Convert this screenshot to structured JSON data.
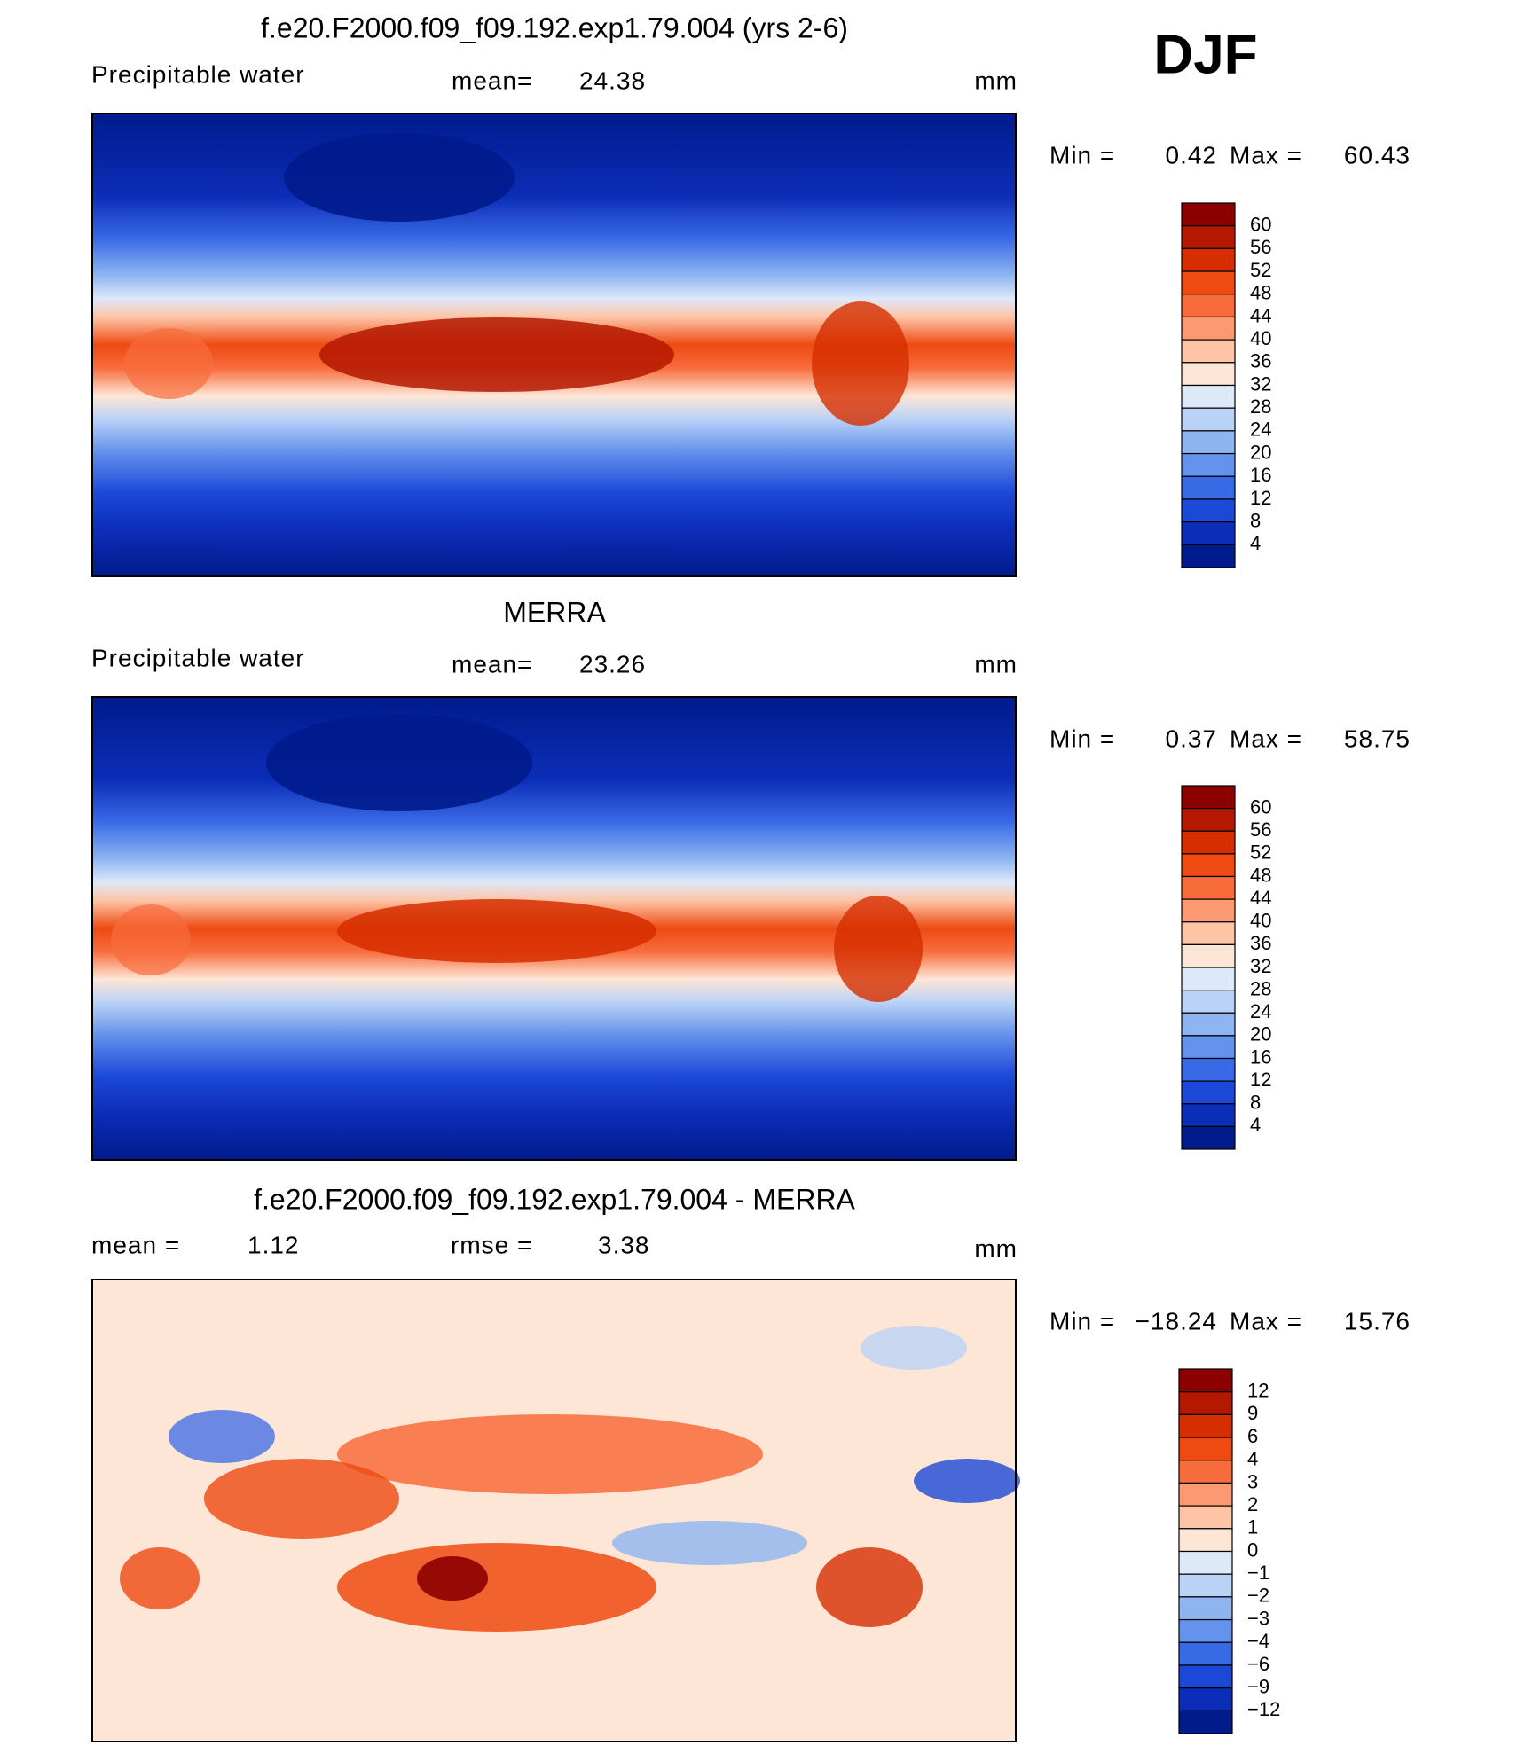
{
  "header": {
    "season": "DJF"
  },
  "panels": [
    {
      "title": "f.e20.F2000.f09_f09.192.exp1.79.004 (yrs 2-6)",
      "variable": "Precipitable water",
      "stat1_label": "mean=",
      "stat1_value": "24.38",
      "units": "mm",
      "min_label": "Min =",
      "min": "0.42",
      "max_label": "Max =",
      "max": "60.43",
      "colorbar": {
        "labels": [
          "60",
          "56",
          "52",
          "48",
          "44",
          "40",
          "36",
          "32",
          "28",
          "24",
          "20",
          "16",
          "12",
          "8",
          "4"
        ],
        "colors": [
          "#8c0000",
          "#b41800",
          "#d62e00",
          "#ee4a12",
          "#f86c3c",
          "#fb9a72",
          "#fdc4a6",
          "#fee6d6",
          "#dde9f9",
          "#bad2f6",
          "#8fb5f1",
          "#6492ec",
          "#396ae6",
          "#1c48d8",
          "#0c2db8",
          "#001b8c"
        ]
      }
    },
    {
      "title": "MERRA",
      "variable": "Precipitable water",
      "stat1_label": "mean=",
      "stat1_value": "23.26",
      "units": "mm",
      "min_label": "Min =",
      "min": "0.37",
      "max_label": "Max =",
      "max": "58.75",
      "colorbar": {
        "labels": [
          "60",
          "56",
          "52",
          "48",
          "44",
          "40",
          "36",
          "32",
          "28",
          "24",
          "20",
          "16",
          "12",
          "8",
          "4"
        ],
        "colors": [
          "#8c0000",
          "#b41800",
          "#d62e00",
          "#ee4a12",
          "#f86c3c",
          "#fb9a72",
          "#fdc4a6",
          "#fee6d6",
          "#dde9f9",
          "#bad2f6",
          "#8fb5f1",
          "#6492ec",
          "#396ae6",
          "#1c48d8",
          "#0c2db8",
          "#001b8c"
        ]
      }
    },
    {
      "title": "f.e20.F2000.f09_f09.192.exp1.79.004 - MERRA",
      "stat1_label": "mean =",
      "stat1_value": "1.12",
      "stat2_label": "rmse =",
      "stat2_value": "3.38",
      "units": "mm",
      "min_label": "Min =",
      "min": "−18.24",
      "max_label": "Max =",
      "max": "15.76",
      "colorbar": {
        "labels": [
          "12",
          "9",
          "6",
          "4",
          "3",
          "2",
          "1",
          "0",
          "−1",
          "−2",
          "−3",
          "−4",
          "−6",
          "−9",
          "−12"
        ],
        "colors": [
          "#8c0000",
          "#b41800",
          "#d62e00",
          "#ee4a12",
          "#f86c3c",
          "#fb9a72",
          "#fdc4a6",
          "#fee6d6",
          "#dde9f9",
          "#bad2f6",
          "#8fb5f1",
          "#6492ec",
          "#396ae6",
          "#1c48d8",
          "#0c2db8",
          "#001b8c"
        ]
      }
    }
  ]
}
